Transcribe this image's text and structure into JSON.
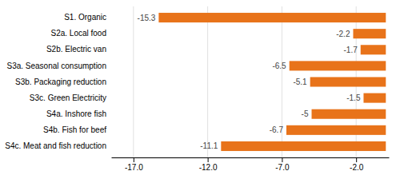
{
  "chart_data": {
    "type": "bar",
    "orientation": "horizontal",
    "categories": [
      "S1. Organic",
      "S2a. Local food",
      "S2b. Electric van",
      "S3a. Seasonal consumption",
      "S3b. Packaging reduction",
      "S3c. Green Electricity",
      "S4a. Inshore fish",
      "S4b. Fish for beef",
      "S4c. Meat and fish reduction"
    ],
    "values": [
      -15.3,
      -2.2,
      -1.7,
      -6.5,
      -5.1,
      -1.5,
      -5.0,
      -6.7,
      -11.1
    ],
    "color": "#E8731A",
    "xlim": [
      -18.5,
      0.2
    ],
    "xticks": [
      {
        "value": -17.0,
        "label": "-17.0"
      },
      {
        "value": -12.0,
        "label": "-12.0"
      },
      {
        "value": -7.0,
        "label": "-7.0"
      },
      {
        "value": -2.0,
        "label": "-2.0"
      }
    ],
    "grid": true,
    "data_labels": true
  }
}
